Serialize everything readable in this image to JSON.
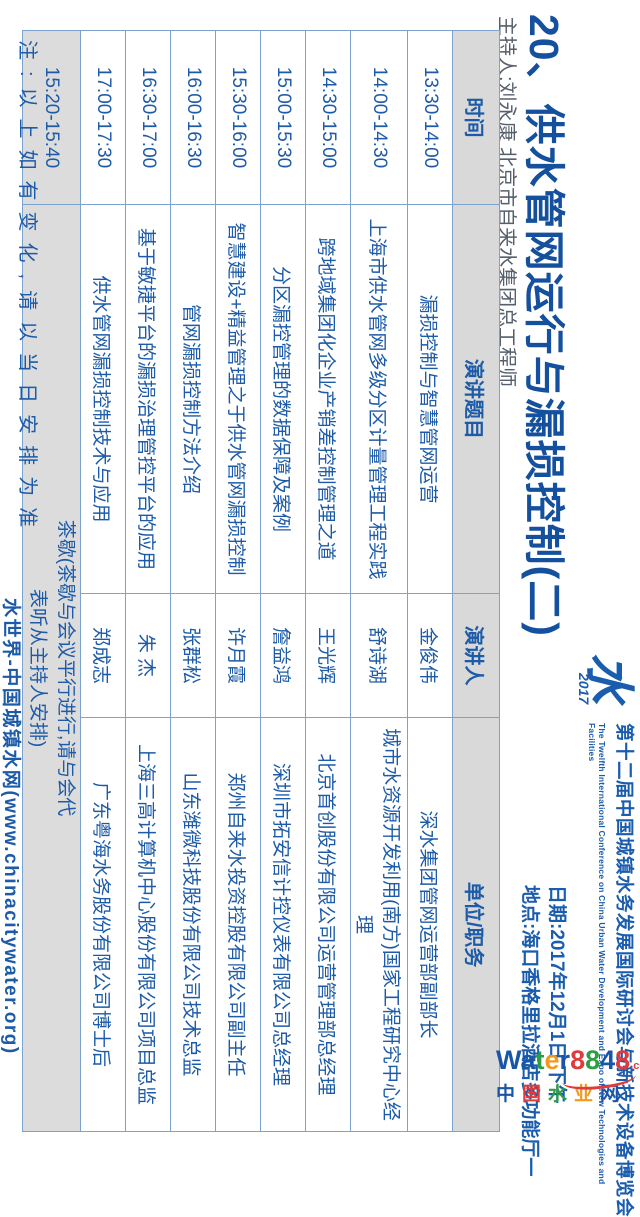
{
  "session": {
    "title": "20、供水管网运行与漏损控制(二)",
    "host_line": "主持人:刘永康  北京市自来水集团总工程师"
  },
  "conference": {
    "logo_cn": "水",
    "logo_year": "2017",
    "name_cn": "第十二届中国城镇水务发展国际研讨会与新技术设备博览会",
    "name_en": "The Twelfth International Conference on China Urban Water Development and Expo of New Technologies and Facilities",
    "date_line": "日期:2017年12月1日 下午",
    "venue_line": "地点:海口香格里拉酒店多功能厅一"
  },
  "table": {
    "headers": [
      "时间",
      "演讲题目",
      "演讲人",
      "单位/职务"
    ],
    "rows": [
      {
        "time": "13:30-14:00",
        "topic": "漏损控制与智慧管网运营",
        "speaker": "金俊伟",
        "org": "深水集团管网运营部副部长"
      },
      {
        "time": "14:00-14:30",
        "topic": "上海市供水管网多级分区计量管理工程实践",
        "speaker": "舒诗湖",
        "org": "城市水资源开发利用(南方)国家工程研究中心经理"
      },
      {
        "time": "14:30-15:00",
        "topic": "跨地域集团化企业产销差控制管理之道",
        "speaker": "王光辉",
        "org": "北京首创股份有限公司运营管理部总经理"
      },
      {
        "time": "15:00-15:30",
        "topic": "分区漏控管理的数据保障及案例",
        "speaker": "詹益鸿",
        "org": "深圳市拓安信计控仪表有限公司总经理"
      },
      {
        "time": "15:30-16:00",
        "topic": "智慧建设+精益管理之于供水管网漏损控制",
        "speaker": "许月霞",
        "org": "郑州自来水投资控股有限公司副主任"
      },
      {
        "time": "16:00-16:30",
        "topic": "管网漏损控制方法介绍",
        "speaker": "张群松",
        "org": "山东潍微科技股份有限公司技术总监"
      },
      {
        "time": "16:30-17:00",
        "topic": "基于敏捷平台的漏损治理管控平台的应用",
        "speaker": "朱 杰",
        "org": "上海三高计算机中心股份有限公司项目总监"
      },
      {
        "time": "17:00-17:30",
        "topic": "供水管网漏损控制技术与应用",
        "speaker": "郑成志",
        "org": "广东粤海水务股份有限公司博士后"
      }
    ],
    "tea_break": {
      "time": "15:20-15:40",
      "text": "茶歇(茶歇与会议平行进行,请与会代表听从主持人安排)"
    }
  },
  "footer": {
    "note": "注:以上如有变化,请以当日安排为准",
    "site": "水世界-中国城镇水网(www.chinacitywater.org)"
  },
  "watermark": {
    "brand": "Water8848",
    "brand_suffix": ".com",
    "brand_cn": "中国水业网",
    "letter_colors": [
      "#1a56a8",
      "#1a56a8",
      "#2e9e44",
      "#f29a1f",
      "#1a56a8",
      "#e03a3a",
      "#2e9e44",
      "#1a56a8",
      "#e03a3a"
    ],
    "cn_colors": [
      "#1a56a8",
      "#e03a3a",
      "#2e9e44",
      "#f29a1f",
      "#1a56a8"
    ]
  },
  "colors": {
    "accent_blue": "#1d5ba8",
    "title_blue": "#14509e",
    "header_gray": "#d9d9d9",
    "tea_gray": "#dcdcdc",
    "border_blue": "#7aa3d0",
    "watermark_red": "#e03a3a"
  }
}
